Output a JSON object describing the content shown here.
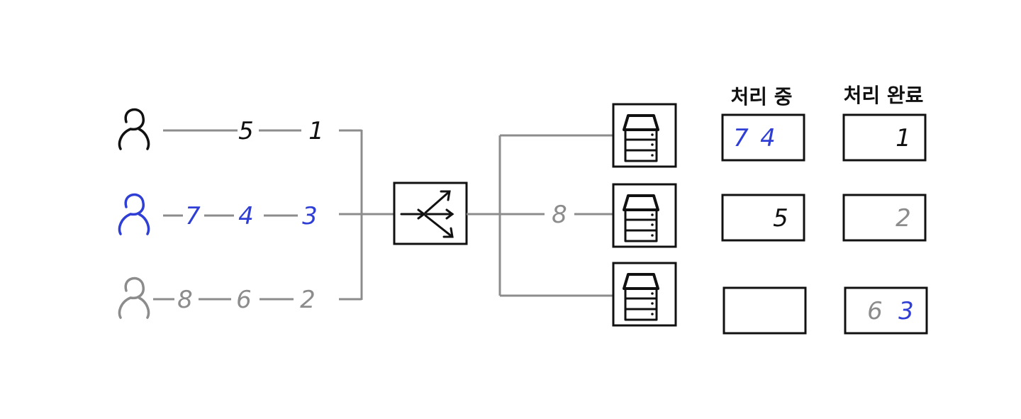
{
  "colors": {
    "black": "#111111",
    "blue": "#2f3fd6",
    "gray": "#8c8c8c",
    "line": "#8c8c8c"
  },
  "icons": {
    "user": "person-outline-icon",
    "balancer": "load-balancer-arrows-icon",
    "server": "server-rack-icon"
  },
  "users": [
    {
      "color": "black",
      "requests": [
        "5",
        "1"
      ]
    },
    {
      "color": "blue",
      "requests": [
        "7",
        "4",
        "3"
      ]
    },
    {
      "color": "gray",
      "requests": [
        "8",
        "6",
        "2"
      ]
    }
  ],
  "pending_label": "8",
  "headers": {
    "processing": "처리 중",
    "done": "처리 완료"
  },
  "servers": [
    {
      "processing": [
        {
          "text": "7",
          "color": "blue"
        },
        {
          "text": "4",
          "color": "blue"
        }
      ],
      "done": [
        {
          "text": "1",
          "color": "black"
        }
      ]
    },
    {
      "processing": [
        {
          "text": "5",
          "color": "black"
        }
      ],
      "done": [
        {
          "text": "2",
          "color": "gray"
        }
      ]
    },
    {
      "processing": [],
      "done": [
        {
          "text": "6",
          "color": "gray"
        },
        {
          "text": "3",
          "color": "blue"
        }
      ]
    }
  ]
}
